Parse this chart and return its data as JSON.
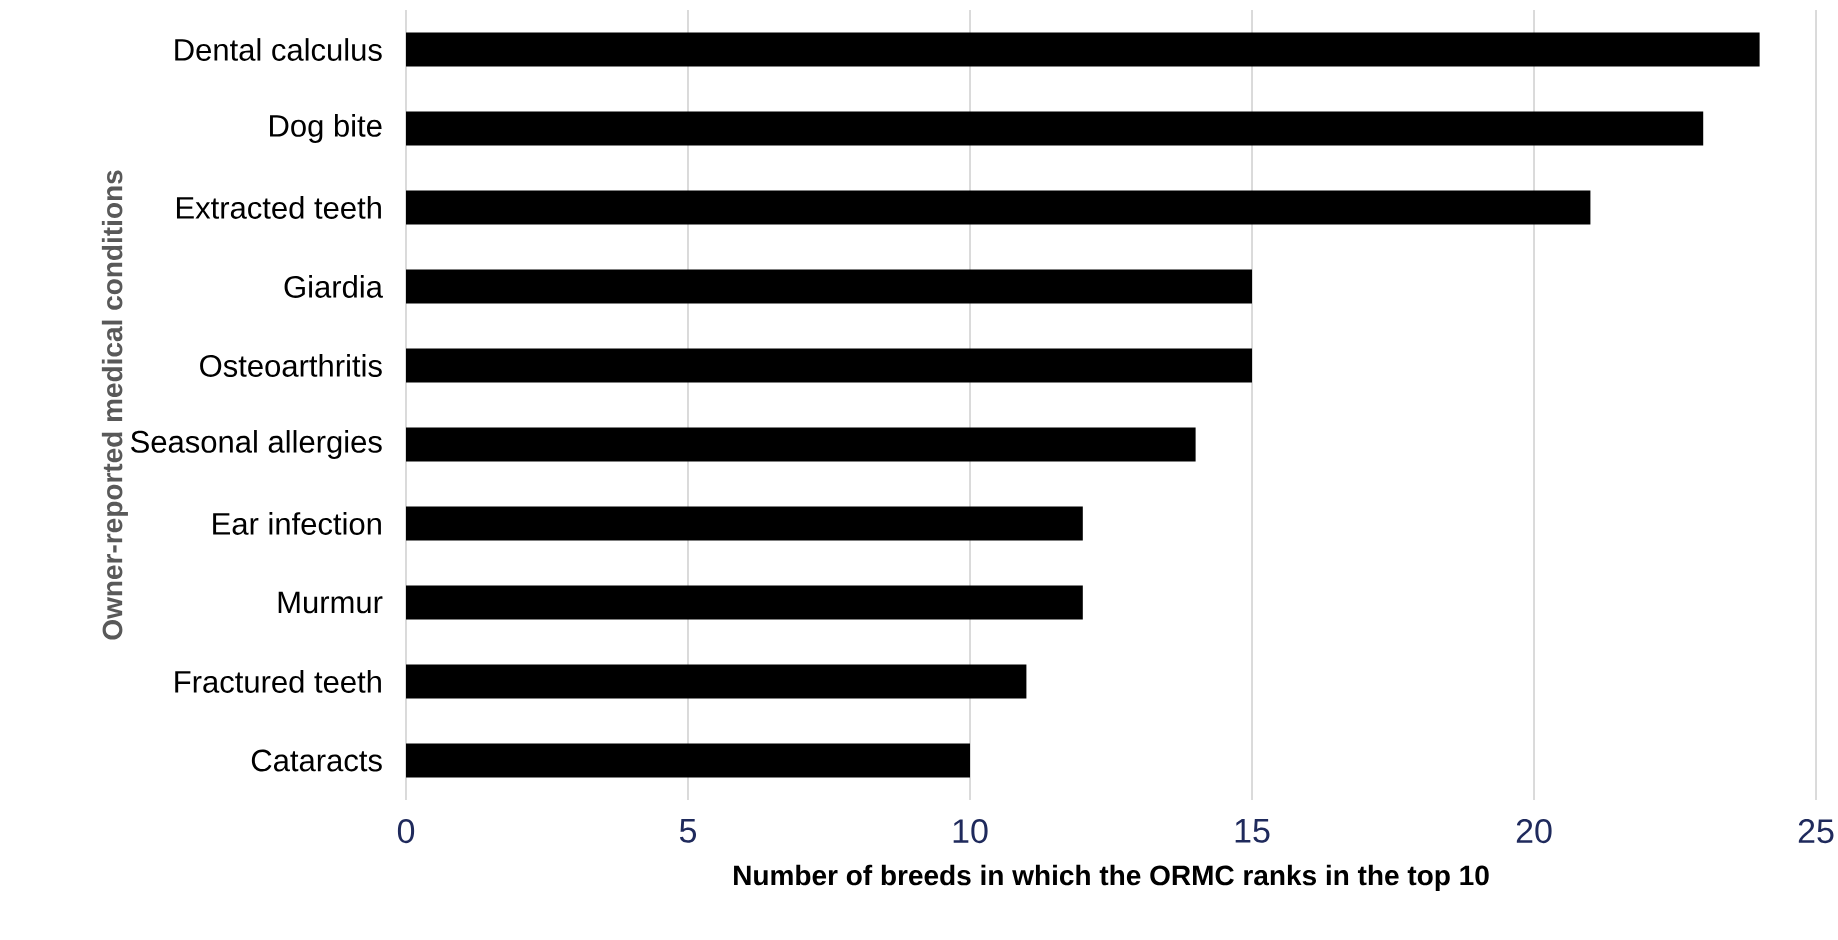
{
  "chart_data": {
    "type": "bar",
    "orientation": "horizontal",
    "xlabel": "Number of breeds in which the ORMC ranks in the top 10",
    "ylabel": "Owner-reported medical conditions",
    "categories": [
      "Dental calculus",
      "Dog bite",
      "Extracted teeth",
      "Giardia",
      "Osteoarthritis",
      "Seasonal allergies",
      "Ear infection",
      "Murmur",
      "Fractured teeth",
      "Cataracts"
    ],
    "values": [
      24,
      23,
      21,
      15,
      15,
      14,
      12,
      12,
      11,
      10
    ],
    "color": "#000000",
    "xlim": [
      0,
      25
    ],
    "xticks": [
      0,
      5,
      10,
      15,
      20,
      25
    ],
    "grid": "x"
  }
}
